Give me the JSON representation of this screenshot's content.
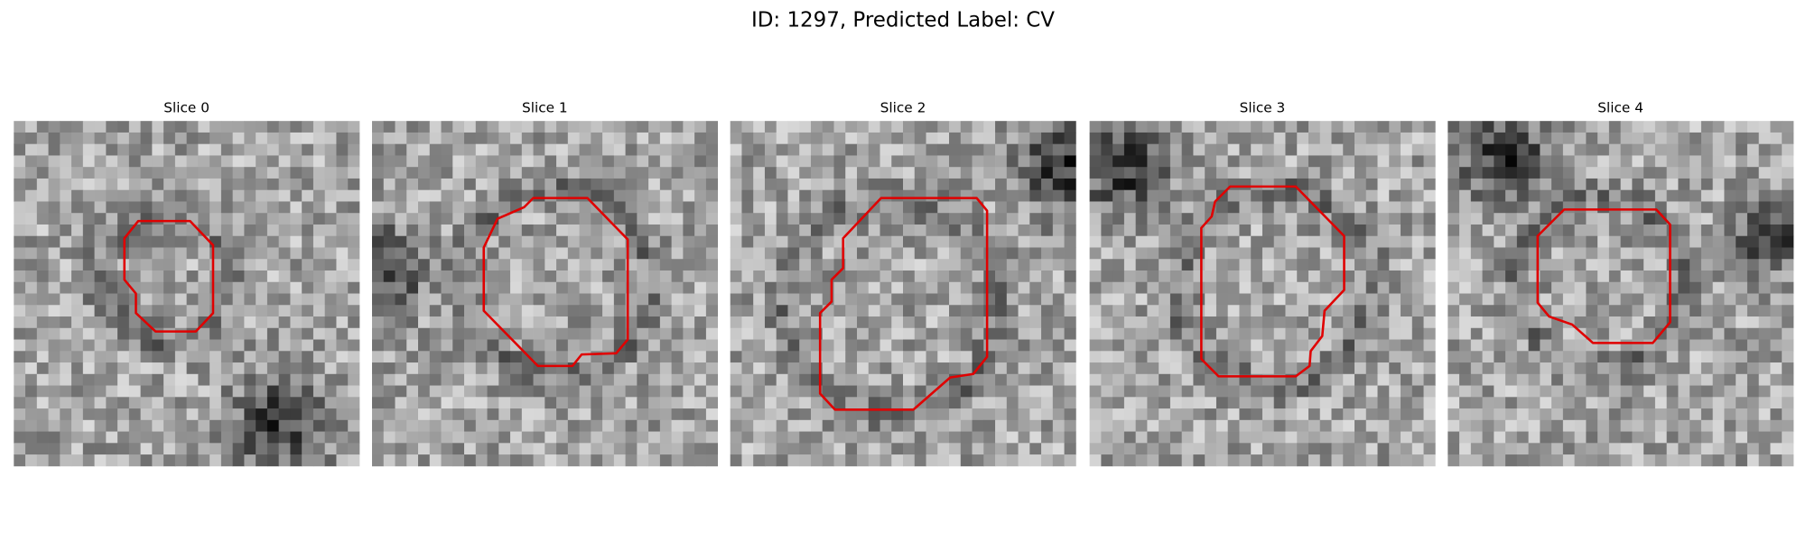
{
  "title": "ID: 1297, Predicted Label: CV",
  "panels": [
    {
      "title": "Slice 0"
    },
    {
      "title": "Slice 1"
    },
    {
      "title": "Slice 2"
    },
    {
      "title": "Slice 3"
    },
    {
      "title": "Slice 4"
    }
  ]
}
